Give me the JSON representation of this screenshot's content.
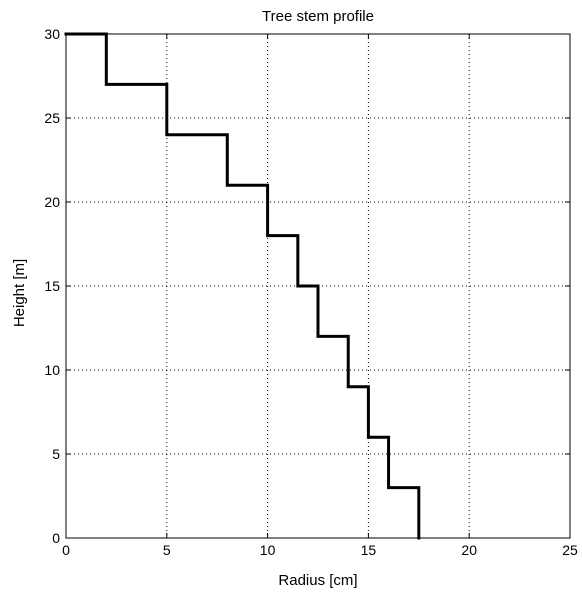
{
  "chart_data": {
    "type": "line",
    "title": "Tree stem profile",
    "xlabel": "Radius [cm]",
    "ylabel": "Height [m]",
    "xlim": [
      0,
      25
    ],
    "ylim": [
      0,
      30
    ],
    "xticks": [
      0,
      5,
      10,
      15,
      20,
      25
    ],
    "yticks": [
      0,
      5,
      10,
      15,
      20,
      25,
      30
    ],
    "xtick_labels": [
      "0",
      "5",
      "10",
      "15",
      "20",
      "25"
    ],
    "ytick_labels": [
      "0",
      "5",
      "10",
      "15",
      "20",
      "25",
      "30"
    ],
    "grid": true,
    "legend": "none",
    "series": [
      {
        "color": "#000000",
        "step_profile": [
          {
            "radius": 17.5,
            "height_from": 0,
            "height_to": 3
          },
          {
            "radius": 16,
            "height_from": 3,
            "height_to": 6
          },
          {
            "radius": 15,
            "height_from": 6,
            "height_to": 9
          },
          {
            "radius": 14,
            "height_from": 9,
            "height_to": 12
          },
          {
            "radius": 12.5,
            "height_from": 12,
            "height_to": 15
          },
          {
            "radius": 11.5,
            "height_from": 15,
            "height_to": 18
          },
          {
            "radius": 10,
            "height_from": 18,
            "height_to": 21
          },
          {
            "radius": 8,
            "height_from": 21,
            "height_to": 24
          },
          {
            "radius": 5,
            "height_from": 24,
            "height_to": 27
          },
          {
            "radius": 2,
            "height_from": 27,
            "height_to": 30
          }
        ],
        "points": [
          [
            17.5,
            0
          ],
          [
            17.5,
            3
          ],
          [
            16,
            3
          ],
          [
            16,
            6
          ],
          [
            15,
            6
          ],
          [
            15,
            9
          ],
          [
            14,
            9
          ],
          [
            14,
            12
          ],
          [
            12.5,
            12
          ],
          [
            12.5,
            15
          ],
          [
            11.5,
            15
          ],
          [
            11.5,
            18
          ],
          [
            10,
            18
          ],
          [
            10,
            21
          ],
          [
            8,
            21
          ],
          [
            8,
            24
          ],
          [
            5,
            24
          ],
          [
            5,
            27
          ],
          [
            2,
            27
          ],
          [
            2,
            30
          ],
          [
            0,
            30
          ]
        ]
      }
    ]
  }
}
